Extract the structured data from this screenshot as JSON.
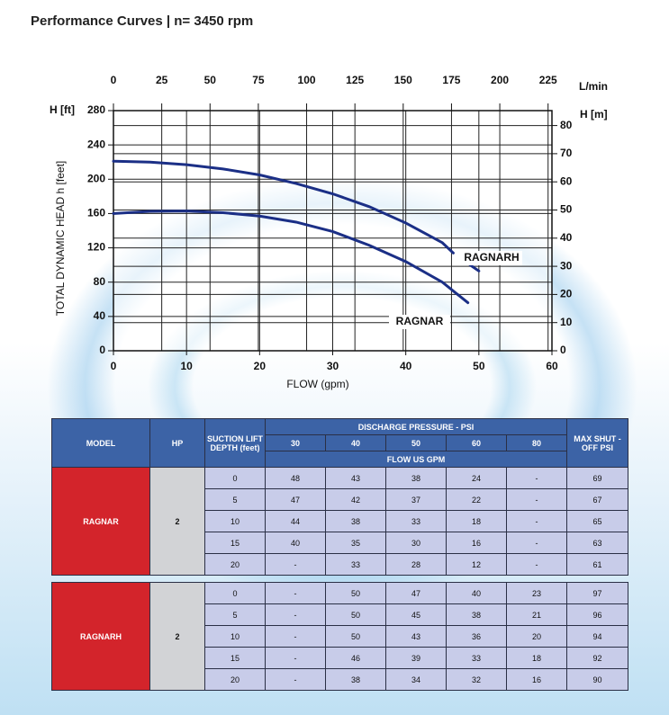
{
  "header": {
    "title": "Performance Curves | n= 3450 rpm"
  },
  "chart_data": {
    "type": "line",
    "x_label": "FLOW (gpm)",
    "y_label": "TOTAL DYNAMIC HEAD h [feet]",
    "y_unit": "H [ft]",
    "y2_unit": "H [m]",
    "x2_unit": "L/min",
    "xlim": [
      0,
      60
    ],
    "xticks": [
      0,
      10,
      20,
      30,
      40,
      50,
      60
    ],
    "x2lim": [
      0,
      227
    ],
    "x2ticks": [
      0,
      25,
      50,
      75,
      100,
      125,
      150,
      175,
      200,
      225
    ],
    "ylim": [
      0,
      280
    ],
    "yticks": [
      0,
      40,
      80,
      120,
      160,
      200,
      240,
      280
    ],
    "y2lim": [
      0,
      85.3
    ],
    "y2ticks": [
      0,
      10,
      20,
      30,
      40,
      50,
      60,
      70,
      80
    ],
    "grid": true,
    "series": [
      {
        "name": "RAGNARH",
        "color": "#1b2f86",
        "x": [
          0,
          5,
          10,
          15,
          20,
          25,
          30,
          35,
          40,
          45,
          46.5,
          47.5,
          48.8,
          50
        ],
        "values": [
          221,
          220,
          217,
          212,
          205,
          195,
          183,
          168,
          149,
          126,
          114,
          null,
          100,
          93
        ]
      },
      {
        "name": "RAGNAR",
        "color": "#1b2f86",
        "x": [
          0,
          5,
          10,
          15,
          20,
          25,
          30,
          35,
          40,
          45,
          48.5
        ],
        "values": [
          160,
          162.5,
          163,
          161,
          157,
          150,
          139,
          123,
          104,
          80,
          56
        ]
      }
    ]
  },
  "table": {
    "headers": {
      "model": "MODEL",
      "hp": "HP",
      "suction": "SUCTION LIFT DEPTH (feet)",
      "discharge": "DISCHARGE PRESSURE - PSI",
      "pressures": [
        30,
        40,
        50,
        60,
        80
      ],
      "flow": "FLOW US GPM",
      "max": "MAX SHUT - OFF PSI"
    },
    "groups": [
      {
        "model": "RAGNAR",
        "hp": 2,
        "rows": [
          [
            0,
            48,
            43,
            38,
            24,
            "-",
            69
          ],
          [
            5,
            47,
            42,
            37,
            22,
            "-",
            67
          ],
          [
            10,
            44,
            38,
            33,
            18,
            "-",
            65
          ],
          [
            15,
            40,
            35,
            30,
            16,
            "-",
            63
          ],
          [
            20,
            "-",
            33,
            28,
            12,
            "-",
            61
          ]
        ]
      },
      {
        "model": "RAGNARH",
        "hp": 2,
        "rows": [
          [
            0,
            "-",
            50,
            47,
            40,
            23,
            97
          ],
          [
            5,
            "-",
            50,
            45,
            38,
            21,
            96
          ],
          [
            10,
            "-",
            50,
            43,
            36,
            20,
            94
          ],
          [
            15,
            "-",
            46,
            39,
            33,
            18,
            92
          ],
          [
            20,
            "-",
            38,
            34,
            32,
            16,
            90
          ]
        ]
      }
    ]
  }
}
